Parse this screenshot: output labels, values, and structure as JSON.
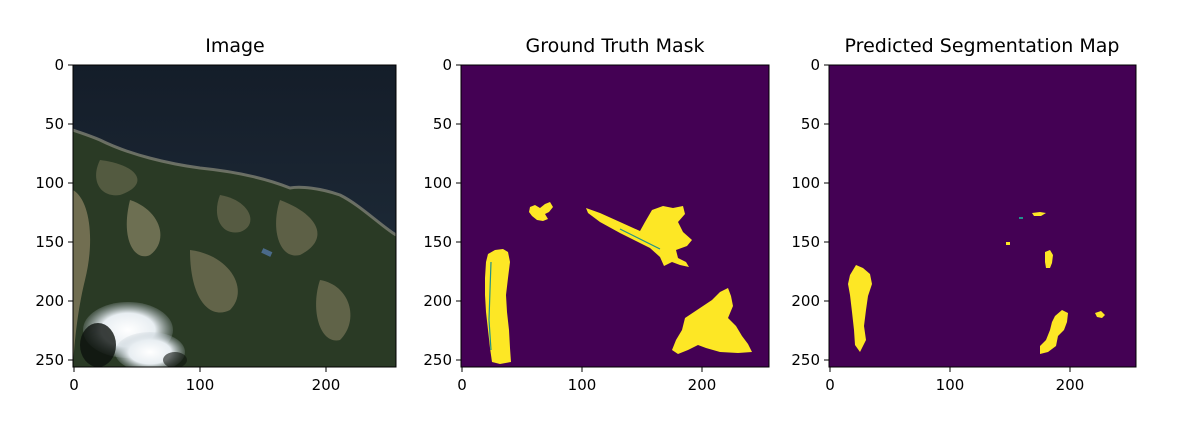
{
  "chart_data": [
    {
      "type": "heatmap",
      "title": "Image",
      "xlabel": "",
      "ylabel": "",
      "xlim": [
        0,
        256
      ],
      "ylim": [
        256,
        0
      ],
      "xticks": [
        0,
        100,
        200
      ],
      "yticks": [
        0,
        50,
        100,
        150,
        200,
        250
      ],
      "content": "satellite RGB image"
    },
    {
      "type": "heatmap",
      "title": "Ground Truth Mask",
      "xlabel": "",
      "ylabel": "",
      "xlim": [
        0,
        256
      ],
      "ylim": [
        256,
        0
      ],
      "xticks": [
        0,
        100,
        200
      ],
      "yticks": [
        0,
        50,
        100,
        150,
        200,
        250
      ],
      "background_color": "#440154",
      "foreground_color": "#fde725",
      "content": "binary mask"
    },
    {
      "type": "heatmap",
      "title": "Predicted Segmentation Map",
      "xlabel": "",
      "ylabel": "",
      "xlim": [
        0,
        256
      ],
      "ylim": [
        256,
        0
      ],
      "xticks": [
        0,
        100,
        200
      ],
      "yticks": [
        0,
        50,
        100,
        150,
        200,
        250
      ],
      "background_color": "#440154",
      "foreground_color": "#fde725",
      "content": "binary mask"
    }
  ]
}
